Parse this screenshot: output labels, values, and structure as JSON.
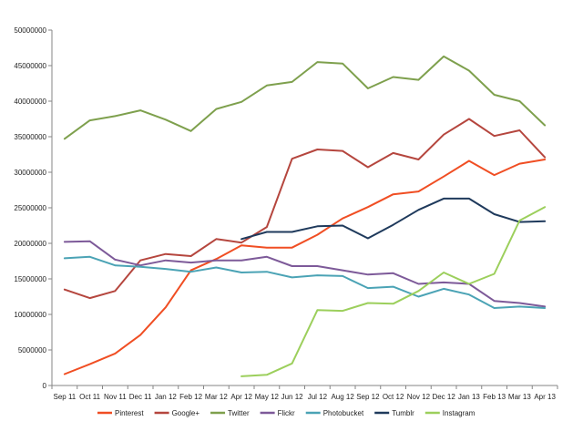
{
  "chart_data": {
    "type": "line",
    "title": "",
    "xlabel": "",
    "ylabel": "",
    "ylim": [
      0,
      50000000
    ],
    "yticks": [
      0,
      5000000,
      10000000,
      15000000,
      20000000,
      25000000,
      30000000,
      35000000,
      40000000,
      45000000,
      50000000
    ],
    "ytick_labels": [
      "0",
      "5000000",
      "10000000",
      "15000000",
      "20000000",
      "25000000",
      "30000000",
      "35000000",
      "40000000",
      "45000000",
      "50000000"
    ],
    "grid": false,
    "legend_position": "bottom",
    "categories": [
      "Sep 11",
      "Oct 11",
      "Nov 11",
      "Dec 11",
      "Jan 12",
      "Feb 12",
      "Mar 12",
      "Apr 12",
      "May 12",
      "Jun 12",
      "Jul 12",
      "Aug 12",
      "Sep 12",
      "Oct 12",
      "Nov 12",
      "Dec 12",
      "Jan 13",
      "Feb 13",
      "Mar 13",
      "Apr 13"
    ],
    "series": [
      {
        "name": "Pinterest",
        "color": "#f04e23",
        "values": [
          1600000,
          3000000,
          4500000,
          7100000,
          11000000,
          16200000,
          17800000,
          19700000,
          19400000,
          19400000,
          21200000,
          23500000,
          25100000,
          26900000,
          27300000,
          29400000,
          31600000,
          29600000,
          31200000,
          31800000
        ]
      },
      {
        "name": "Google+",
        "color": "#b5463e",
        "values": [
          13500000,
          12300000,
          13300000,
          17600000,
          18500000,
          18200000,
          20600000,
          20100000,
          22300000,
          31900000,
          33200000,
          33000000,
          30700000,
          32700000,
          31800000,
          35300000,
          37500000,
          35100000,
          35900000,
          32100000
        ]
      },
      {
        "name": "Twitter",
        "color": "#7ea04d",
        "values": [
          34700000,
          37300000,
          37900000,
          38700000,
          37400000,
          35800000,
          38900000,
          39900000,
          42200000,
          42700000,
          45500000,
          45300000,
          41800000,
          43400000,
          43000000,
          46300000,
          44300000,
          40900000,
          40000000,
          36600000
        ]
      },
      {
        "name": "Flickr",
        "color": "#7d5a99",
        "values": [
          20200000,
          20300000,
          17700000,
          16900000,
          17600000,
          17300000,
          17600000,
          17600000,
          18100000,
          16800000,
          16800000,
          16200000,
          15600000,
          15800000,
          14300000,
          14500000,
          14300000,
          11900000,
          11600000,
          11100000
        ]
      },
      {
        "name": "Photobucket",
        "color": "#4ba3b5",
        "values": [
          17900000,
          18100000,
          16900000,
          16700000,
          16400000,
          16000000,
          16600000,
          15900000,
          16000000,
          15200000,
          15500000,
          15400000,
          13700000,
          13900000,
          12500000,
          13600000,
          12800000,
          10900000,
          11100000,
          10900000
        ]
      },
      {
        "name": "Tumblr",
        "color": "#1f3a5c",
        "values": [
          null,
          null,
          null,
          null,
          null,
          null,
          null,
          20600000,
          21600000,
          21600000,
          22400000,
          22500000,
          20700000,
          22600000,
          24700000,
          26300000,
          26300000,
          24100000,
          23000000,
          23100000
        ]
      },
      {
        "name": "Instagram",
        "color": "#9ccf5c",
        "values": [
          null,
          null,
          null,
          null,
          null,
          null,
          null,
          1300000,
          1500000,
          3100000,
          10600000,
          10500000,
          11600000,
          11500000,
          13300000,
          15900000,
          14300000,
          15700000,
          23200000,
          25100000
        ]
      }
    ]
  }
}
